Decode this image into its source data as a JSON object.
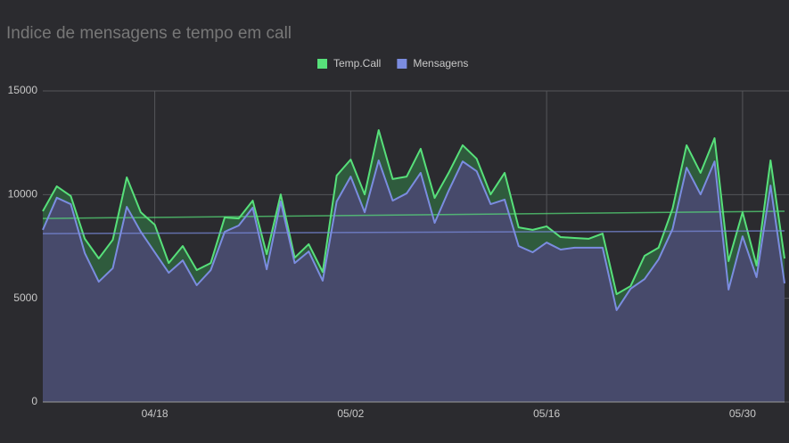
{
  "chart_data": {
    "type": "area",
    "title": "Indice de mensagens e tempo em call",
    "categories": [
      null,
      null,
      null,
      null,
      null,
      null,
      null,
      null,
      "04/18",
      null,
      null,
      null,
      null,
      null,
      null,
      null,
      null,
      null,
      null,
      null,
      null,
      null,
      "05/02",
      null,
      null,
      null,
      null,
      null,
      null,
      null,
      null,
      null,
      null,
      null,
      null,
      null,
      "05/16",
      null,
      null,
      null,
      null,
      null,
      null,
      null,
      null,
      null,
      null,
      null,
      null,
      null,
      "05/30",
      null,
      null,
      null
    ],
    "series": [
      {
        "name": "Temp.Call",
        "color": "#57e07a",
        "fill": "#2f5b3d",
        "trend": [
          8850,
          9200
        ],
        "values": [
          9200,
          10400,
          9930,
          7870,
          6920,
          7820,
          10830,
          9150,
          8550,
          6700,
          7520,
          6360,
          6700,
          8900,
          8850,
          9710,
          7130,
          10010,
          6960,
          7610,
          6270,
          10920,
          11690,
          10010,
          13110,
          10750,
          10870,
          12210,
          9840,
          11050,
          12380,
          11730,
          10010,
          11050,
          8420,
          8300,
          8470,
          7950,
          7910,
          7870,
          8120,
          5200,
          5590,
          7050,
          7440,
          9330,
          12380,
          11050,
          12720,
          6790,
          9150,
          6580,
          11650,
          6920
        ]
      },
      {
        "name": "Mensagens",
        "color": "#7b8ce0",
        "fill": "#474a6b",
        "trend": [
          8120,
          8250
        ],
        "values": [
          8300,
          9850,
          9540,
          7180,
          5800,
          6450,
          9410,
          8210,
          7220,
          6230,
          6830,
          5630,
          6360,
          8210,
          8510,
          9370,
          6400,
          9670,
          6700,
          7260,
          5850,
          9670,
          10870,
          9150,
          11650,
          9710,
          10060,
          11050,
          8640,
          10190,
          11600,
          11130,
          9540,
          9760,
          7520,
          7220,
          7690,
          7350,
          7440,
          7440,
          7440,
          4430,
          5460,
          5930,
          6880,
          8340,
          11300,
          10010,
          11600,
          5420,
          7990,
          6020,
          10440,
          5720
        ]
      }
    ],
    "ylim": [
      0,
      15000
    ],
    "yticks": [
      0,
      5000,
      10000,
      15000
    ],
    "grid": true,
    "legend": "top"
  }
}
